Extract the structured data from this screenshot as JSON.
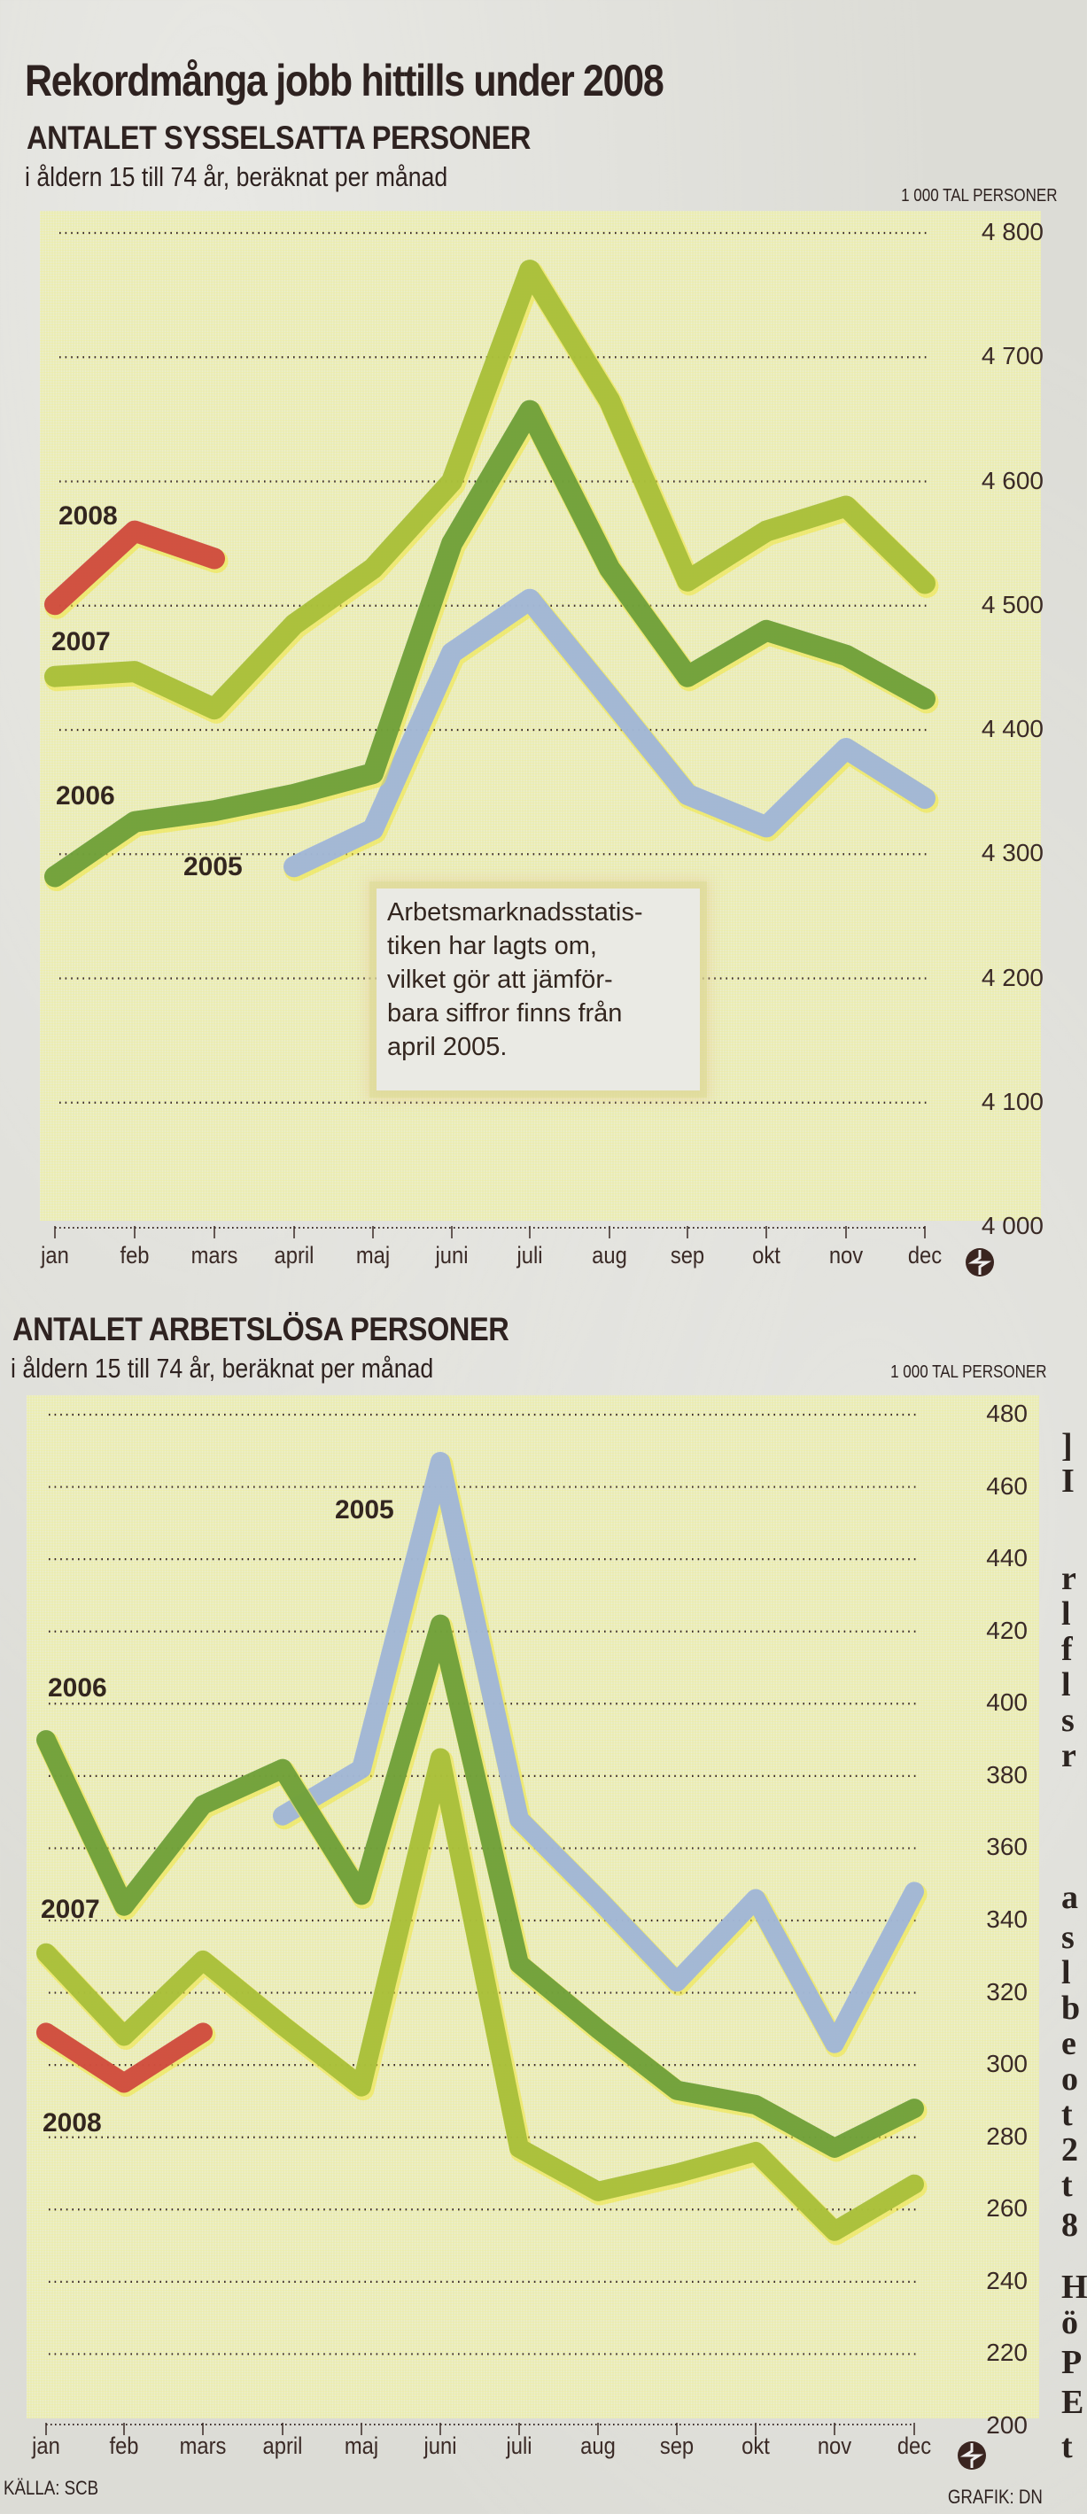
{
  "headline": "Rekordmånga jobb hittills under 2008",
  "colors": {
    "2005": "#9fb5d9",
    "2006": "#6e9f3a",
    "2007": "#a8bf3a",
    "2008": "#cf4a3e",
    "text": "#2e2220",
    "plot_bg": "#e9ebbd",
    "grid": "#3a2a26"
  },
  "footer": {
    "source": "KÄLLA: SCB",
    "credit": "GRAFIK: DN"
  },
  "side_fragments": [
    "]",
    "I",
    "r",
    "l",
    "f",
    "l",
    "s",
    "r",
    "a",
    "s",
    "l",
    "b",
    "e",
    "o",
    "t",
    "2",
    "t",
    "8",
    "H",
    "ö",
    "P",
    "E",
    "t"
  ],
  "chart_data": [
    {
      "type": "line",
      "title": "ANTALET SYSSELSATTA PERSONER",
      "subtitle": "i åldern 15 till 74 år, beräknat per månad",
      "ylabel": "1 000 TAL PERSONER",
      "xlabel": "",
      "categories": [
        "jan",
        "feb",
        "mars",
        "april",
        "maj",
        "juni",
        "juli",
        "aug",
        "sep",
        "okt",
        "nov",
        "dec"
      ],
      "yticks": [
        "4 800",
        "4 700",
        "4 600",
        "4 500",
        "4 400",
        "4 300",
        "4 200",
        "4 100",
        "4 000"
      ],
      "ylim": [
        4000,
        4800
      ],
      "grid": true,
      "legend_position": "inline labels at left",
      "series": [
        {
          "name": "2005",
          "start_month": "april",
          "values": [
            4290,
            4320,
            4462,
            4505,
            4426,
            4348,
            4322,
            4385,
            4345
          ]
        },
        {
          "name": "2006",
          "start_month": "jan",
          "values": [
            4282,
            4326,
            4335,
            4348,
            4365,
            4550,
            4657,
            4530,
            4443,
            4480,
            4460,
            4425
          ]
        },
        {
          "name": "2007",
          "start_month": "jan",
          "values": [
            4443,
            4447,
            4417,
            4485,
            4530,
            4600,
            4770,
            4665,
            4520,
            4560,
            4580,
            4518
          ]
        },
        {
          "name": "2008",
          "start_month": "jan",
          "values": [
            4501,
            4560,
            4538
          ]
        }
      ],
      "annotation": [
        "Arbetsmarknadsstatis-",
        "tiken har lagts om,",
        "vilket gör att jämför-",
        "bara siffror finns från",
        "april 2005."
      ]
    },
    {
      "type": "line",
      "title": "ANTALET ARBETSLÖSA PERSONER",
      "subtitle": "i åldern 15 till 74 år, beräknat per månad",
      "ylabel": "1 000 TAL PERSONER",
      "xlabel": "",
      "categories": [
        "jan",
        "feb",
        "mars",
        "april",
        "maj",
        "juni",
        "juli",
        "aug",
        "sep",
        "okt",
        "nov",
        "dec"
      ],
      "yticks": [
        "480",
        "460",
        "440",
        "420",
        "400",
        "380",
        "360",
        "340",
        "320",
        "300",
        "280",
        "260",
        "240",
        "220",
        "200"
      ],
      "ylim": [
        200,
        480
      ],
      "grid": true,
      "legend_position": "inline labels at left",
      "series": [
        {
          "name": "2005",
          "start_month": "april",
          "values": [
            369,
            382,
            467,
            368,
            346,
            323,
            346,
            306,
            348
          ]
        },
        {
          "name": "2006",
          "start_month": "jan",
          "values": [
            390,
            344,
            372,
            382,
            347,
            422,
            328,
            310,
            293,
            289,
            277,
            288
          ]
        },
        {
          "name": "2007",
          "start_month": "jan",
          "values": [
            331,
            308,
            329,
            311,
            294,
            385,
            277,
            265,
            270,
            276,
            254,
            267
          ]
        },
        {
          "name": "2008",
          "start_month": "jan",
          "values": [
            309,
            295,
            309
          ]
        }
      ]
    }
  ]
}
